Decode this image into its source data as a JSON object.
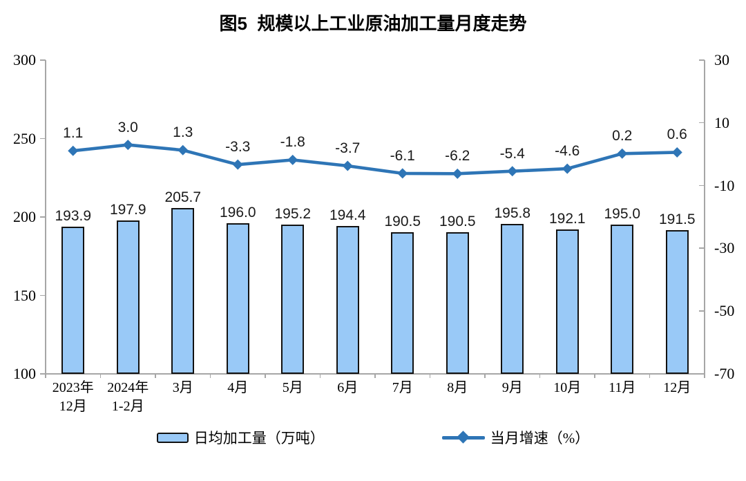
{
  "title": "图5  规模以上工业原油加工量月度走势",
  "colors": {
    "bar_fill": "#99C9F7",
    "bar_border": "#111111",
    "line": "#2E75B6",
    "axis": "#A6A6A6",
    "label_text": "#1A1A1A"
  },
  "legend": {
    "bar_label": "日均加工量（万吨）",
    "line_label": "当月增速（%）"
  },
  "chart_data": {
    "type": "bar+line combo",
    "title": "图5  规模以上工业原油加工量月度走势",
    "categories": [
      "2023年\n12月",
      "2024年\n1-2月",
      "3月",
      "4月",
      "5月",
      "6月",
      "7月",
      "8月",
      "9月",
      "10月",
      "11月",
      "12月"
    ],
    "series": [
      {
        "name": "日均加工量（万吨）",
        "type": "bar",
        "axis": "left",
        "values": [
          193.9,
          197.9,
          205.7,
          196.0,
          195.2,
          194.4,
          190.5,
          190.5,
          195.8,
          192.1,
          195.0,
          191.5
        ]
      },
      {
        "name": "当月增速（%）",
        "type": "line",
        "axis": "right",
        "values": [
          1.1,
          3.0,
          1.3,
          -3.3,
          -1.8,
          -3.7,
          -6.1,
          -6.2,
          -5.4,
          -4.6,
          0.2,
          0.6
        ]
      }
    ],
    "left_axis": {
      "min": 100,
      "max": 300,
      "ticks": [
        100,
        150,
        200,
        250,
        300
      ]
    },
    "right_axis": {
      "min": -70,
      "max": 30,
      "ticks": [
        -70,
        -50,
        -30,
        -10,
        10,
        30
      ]
    },
    "grid": false,
    "legend_position": "bottom",
    "data_labels": true
  }
}
